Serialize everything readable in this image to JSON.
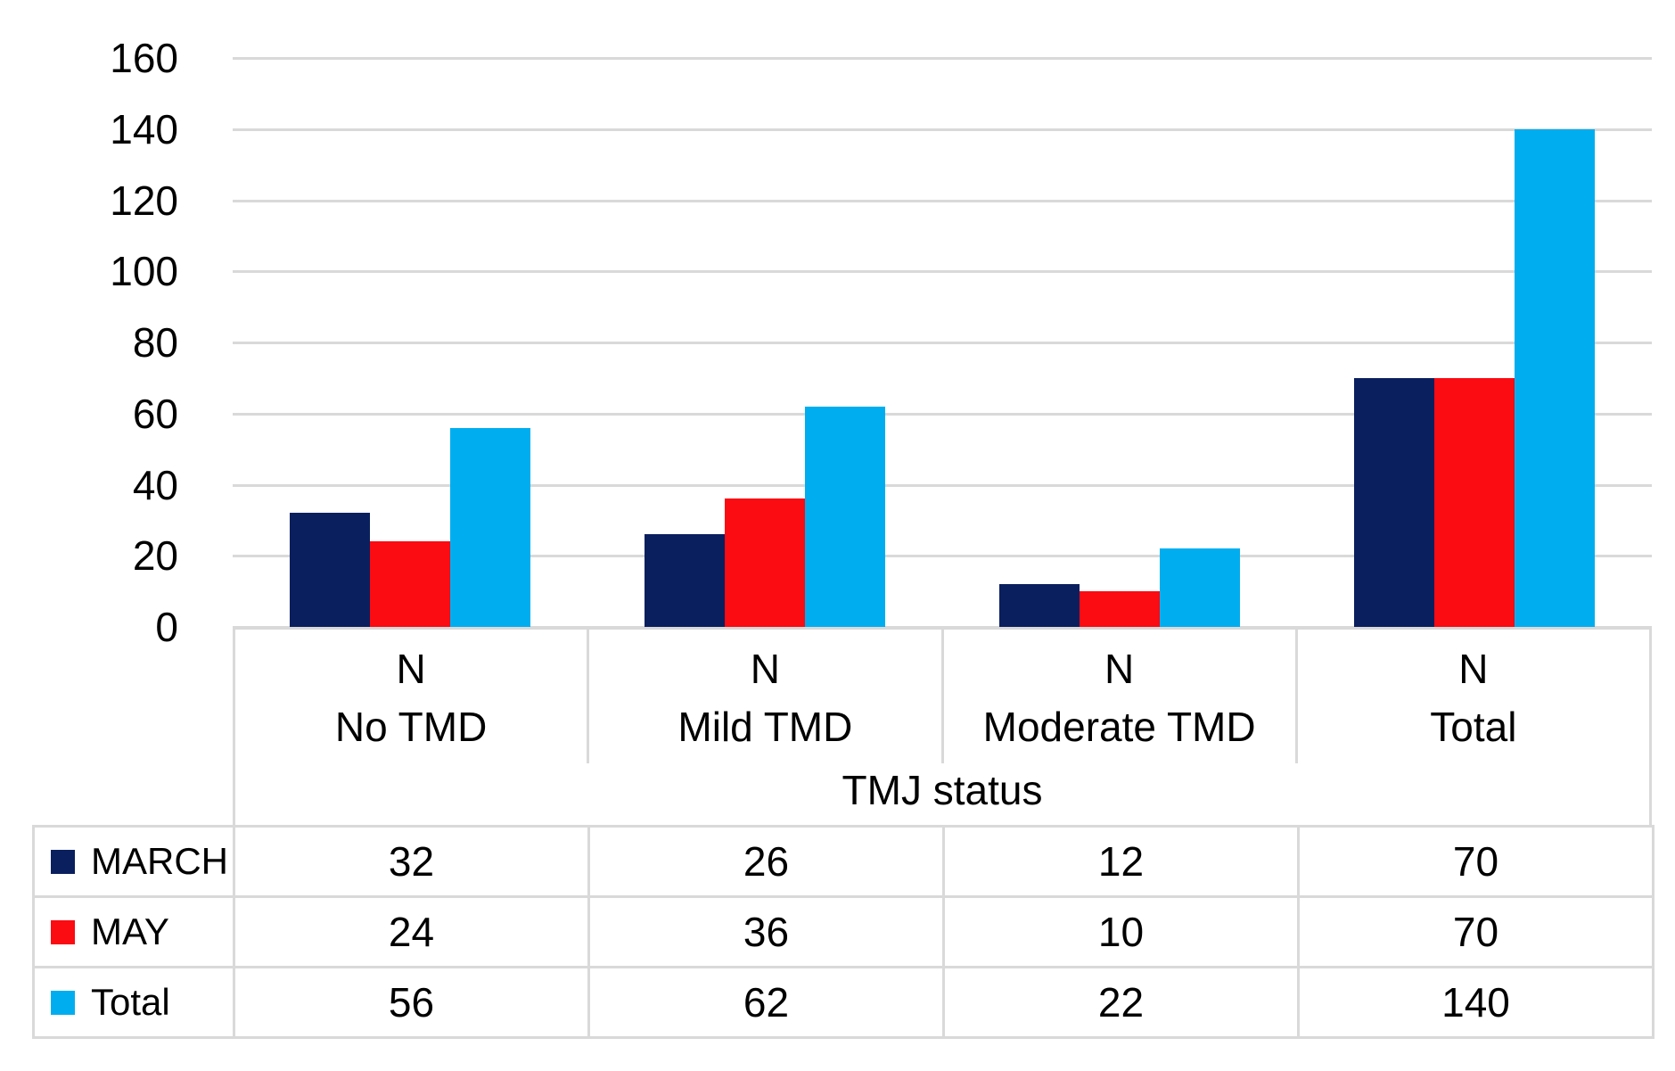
{
  "chart_data": {
    "type": "bar",
    "title": "",
    "categories": [
      "No TMD",
      "Mild TMD",
      "Moderate TMD",
      "Total"
    ],
    "category_sub_label": "N",
    "x_axis_title": "TMJ status",
    "series": [
      {
        "name": "MARCH",
        "color": "#0a1f5e",
        "values": [
          32,
          26,
          12,
          70
        ]
      },
      {
        "name": "MAY",
        "color": "#fb0b12",
        "values": [
          24,
          36,
          10,
          70
        ]
      },
      {
        "name": "Total",
        "color": "#00aeef",
        "values": [
          56,
          62,
          22,
          140
        ]
      }
    ],
    "y_axis": {
      "min": 0,
      "max": 160,
      "step": 20,
      "tick_labels": [
        "0",
        "20",
        "40",
        "60",
        "80",
        "100",
        "120",
        "140",
        "160"
      ]
    },
    "ylim": [
      0,
      160
    ],
    "grid": true,
    "legend_position": "table-left"
  },
  "colors": {
    "background": "#ffffff",
    "gridline": "#d9d9d9",
    "table_border": "#d9d9d9",
    "text": "#000000",
    "series_march": "#0a1f5e",
    "series_may": "#fb0b12",
    "series_total": "#00aeef"
  }
}
